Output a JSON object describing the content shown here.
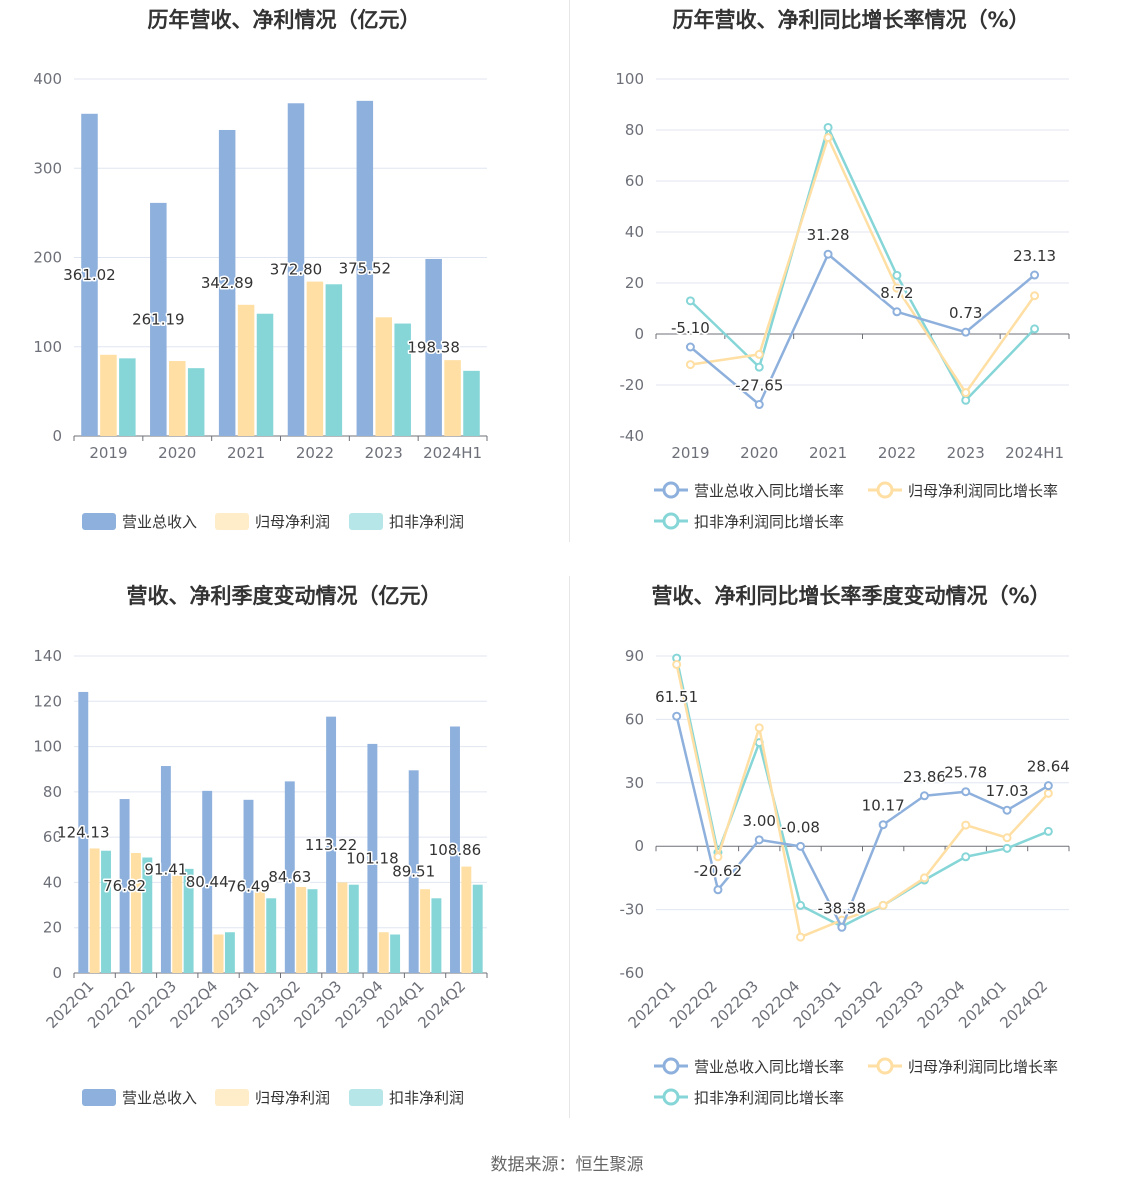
{
  "source_label": "数据来源：恒生聚源",
  "colors": {
    "revenue": "#8eb0dc",
    "net_profit": "#ffdfa3",
    "deducted_profit": "#86d6d8",
    "grid": "#e0e6f1",
    "axis": "#6e7079"
  },
  "chart_data": [
    {
      "type": "bar",
      "title": "历年营收、净利情况（亿元）",
      "categories": [
        "2019",
        "2020",
        "2021",
        "2022",
        "2023",
        "2024H1"
      ],
      "ylim": [
        0,
        400
      ],
      "yticks": [
        0,
        100,
        200,
        300,
        400
      ],
      "grid": true,
      "legend_position": "bottom",
      "label_series": 0,
      "series": [
        {
          "name": "营业总收入",
          "values": [
            361.02,
            261.19,
            342.89,
            372.8,
            375.52,
            198.38
          ],
          "labels": [
            "361.02",
            "261.19",
            "342.89",
            "372.80",
            "375.52",
            "198.38"
          ]
        },
        {
          "name": "归母净利润",
          "values": [
            91,
            84,
            147,
            173,
            133,
            85
          ]
        },
        {
          "name": "扣非净利润",
          "values": [
            87,
            76,
            137,
            170,
            126,
            73
          ]
        }
      ]
    },
    {
      "type": "line",
      "title": "历年营收、净利同比增长率情况（%）",
      "categories": [
        "2019",
        "2020",
        "2021",
        "2022",
        "2023",
        "2024H1"
      ],
      "ylim": [
        -40,
        100
      ],
      "yticks": [
        -40,
        -20,
        0,
        20,
        40,
        60,
        80,
        100
      ],
      "grid": true,
      "legend_position": "bottom",
      "label_series": 0,
      "series": [
        {
          "name": "营业总收入同比增长率",
          "values": [
            -5.1,
            -27.65,
            31.28,
            8.72,
            0.73,
            23.13
          ],
          "labels": [
            "-5.10",
            "-27.65",
            "31.28",
            "8.72",
            "0.73",
            "23.13"
          ]
        },
        {
          "name": "归母净利润同比增长率",
          "values": [
            -12,
            -8,
            77,
            18,
            -23,
            15
          ]
        },
        {
          "name": "扣非净利润同比增长率",
          "values": [
            13,
            -13,
            81,
            23,
            -26,
            2
          ]
        }
      ]
    },
    {
      "type": "bar",
      "title": "营收、净利季度变动情况（亿元）",
      "categories": [
        "2022Q1",
        "2022Q2",
        "2022Q3",
        "2022Q4",
        "2023Q1",
        "2023Q2",
        "2023Q3",
        "2023Q4",
        "2024Q1",
        "2024Q2"
      ],
      "ylim": [
        0,
        140
      ],
      "yticks": [
        0,
        20,
        40,
        60,
        80,
        100,
        120,
        140
      ],
      "grid": true,
      "legend_position": "bottom",
      "label_series": 0,
      "series": [
        {
          "name": "营业总收入",
          "values": [
            124.13,
            76.82,
            91.41,
            80.44,
            76.49,
            84.63,
            113.22,
            101.18,
            89.51,
            108.86
          ],
          "labels": [
            "124.13",
            "76.82",
            "91.41",
            "80.44",
            "76.49",
            "84.63",
            "113.22",
            "101.18",
            "89.51",
            "108.86"
          ]
        },
        {
          "name": "归母净利润",
          "values": [
            55,
            53,
            43,
            17,
            36,
            38,
            40,
            18,
            37,
            47
          ]
        },
        {
          "name": "扣非净利润",
          "values": [
            54,
            51,
            46,
            18,
            33,
            37,
            39,
            17,
            33,
            39
          ]
        }
      ]
    },
    {
      "type": "line",
      "title": "营收、净利同比增长率季度变动情况（%）",
      "categories": [
        "2022Q1",
        "2022Q2",
        "2022Q3",
        "2022Q4",
        "2023Q1",
        "2023Q2",
        "2023Q3",
        "2023Q4",
        "2024Q1",
        "2024Q2"
      ],
      "ylim": [
        -60,
        90
      ],
      "yticks": [
        -60,
        -30,
        0,
        30,
        60,
        90
      ],
      "grid": true,
      "legend_position": "bottom",
      "label_series": 0,
      "series": [
        {
          "name": "营业总收入同比增长率",
          "values": [
            61.51,
            -20.62,
            3.0,
            -0.08,
            -38.38,
            10.17,
            23.86,
            25.78,
            17.03,
            28.64
          ],
          "labels": [
            "61.51",
            "-20.62",
            "3.00",
            "-0.08",
            "-38.38",
            "10.17",
            "23.86",
            "25.78",
            "17.03",
            "28.64"
          ]
        },
        {
          "name": "归母净利润同比增长率",
          "values": [
            86,
            -5,
            56,
            -43,
            -35,
            -28,
            -15,
            10,
            4,
            25
          ]
        },
        {
          "name": "扣非净利润同比增长率",
          "values": [
            89,
            -3,
            49,
            -28,
            -38,
            -28,
            -16,
            -5,
            -1,
            7
          ]
        }
      ]
    }
  ]
}
